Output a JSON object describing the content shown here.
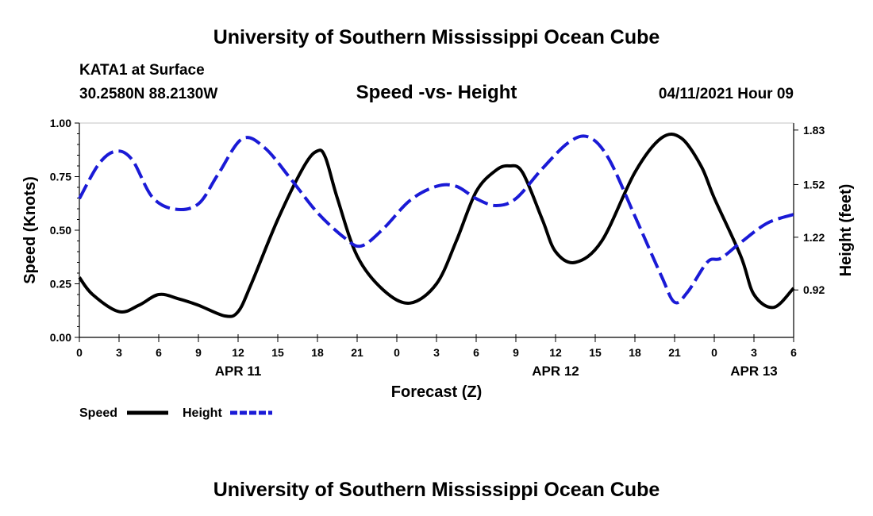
{
  "header": {
    "title": "University of Southern Mississippi Ocean Cube",
    "station": "KATA1 at Surface",
    "location": "30.2580N  88.2130W",
    "timestamp": "04/11/2021 Hour 09"
  },
  "footer": {
    "title": "University of Southern Mississippi Ocean Cube"
  },
  "colors": {
    "speed": "#000000",
    "height": "#1a1ad6"
  },
  "chart_data": {
    "type": "line",
    "title": "Speed -vs- Height",
    "xlabel": "Forecast (Z)",
    "ylabel_left": "Speed (Knots)",
    "ylabel_right": "Height (feet)",
    "xlim": [
      0,
      54
    ],
    "ylim_left": [
      0,
      1
    ],
    "ylim_right": [
      0.65,
      1.87
    ],
    "x_tick_values": [
      0,
      3,
      6,
      9,
      12,
      15,
      18,
      21,
      24,
      27,
      30,
      33,
      36,
      39,
      42,
      45,
      48,
      51,
      54
    ],
    "x_tick_labels": [
      "0",
      "3",
      "6",
      "9",
      "12",
      "15",
      "18",
      "21",
      "0",
      "3",
      "6",
      "9",
      "12",
      "15",
      "18",
      "21",
      "0",
      "3",
      "6"
    ],
    "date_labels": [
      {
        "x": 12,
        "label": "APR 11"
      },
      {
        "x": 36,
        "label": "APR 12"
      },
      {
        "x": 51,
        "label": "APR 13"
      }
    ],
    "y_left_ticks": [
      0,
      0.25,
      0.5,
      0.75,
      1.0
    ],
    "y_left_tick_labels": [
      "0.00",
      "0.25",
      "0.50",
      "0.75",
      "1.00"
    ],
    "y_right_ticks": [
      0.92,
      1.22,
      1.52,
      1.83
    ],
    "y_right_tick_labels": [
      "0.92",
      "1.22",
      "1.52",
      "1.83"
    ],
    "legend": {
      "speed_label": "Speed",
      "height_label": "Height",
      "position": "bottom-left"
    },
    "series": [
      {
        "name": "Speed",
        "axis": "left",
        "style": "solid",
        "x": [
          0,
          1,
          3,
          4.5,
          6,
          7.5,
          9,
          11,
          12,
          13,
          15,
          17,
          18,
          18.6,
          19.5,
          21,
          23,
          25,
          27,
          28.5,
          30,
          31.5,
          32.5,
          33.5,
          35,
          36,
          37.5,
          39.5,
          42,
          44,
          45.5,
          47,
          48,
          50,
          51,
          52.5,
          54
        ],
        "y": [
          0.28,
          0.2,
          0.12,
          0.15,
          0.2,
          0.18,
          0.15,
          0.1,
          0.12,
          0.25,
          0.55,
          0.8,
          0.87,
          0.84,
          0.65,
          0.38,
          0.22,
          0.16,
          0.25,
          0.45,
          0.68,
          0.78,
          0.8,
          0.77,
          0.55,
          0.4,
          0.35,
          0.45,
          0.77,
          0.93,
          0.93,
          0.8,
          0.65,
          0.38,
          0.2,
          0.14,
          0.23
        ]
      },
      {
        "name": "Height",
        "axis": "right",
        "style": "dashed",
        "x": [
          0,
          1.5,
          2.8,
          4,
          5.5,
          7.2,
          9,
          10.5,
          12.3,
          14,
          16,
          18,
          20,
          21.3,
          23,
          25,
          27,
          28.5,
          30,
          31.5,
          33,
          35,
          37,
          38.5,
          40,
          42,
          44,
          45,
          46,
          47.5,
          48.5,
          50,
          52,
          54
        ],
        "y": [
          1.44,
          1.64,
          1.71,
          1.66,
          1.45,
          1.38,
          1.41,
          1.58,
          1.78,
          1.73,
          1.55,
          1.36,
          1.22,
          1.17,
          1.27,
          1.43,
          1.51,
          1.51,
          1.44,
          1.4,
          1.44,
          1.61,
          1.76,
          1.79,
          1.67,
          1.34,
          1.0,
          0.85,
          0.91,
          1.08,
          1.1,
          1.19,
          1.3,
          1.35
        ]
      }
    ]
  }
}
